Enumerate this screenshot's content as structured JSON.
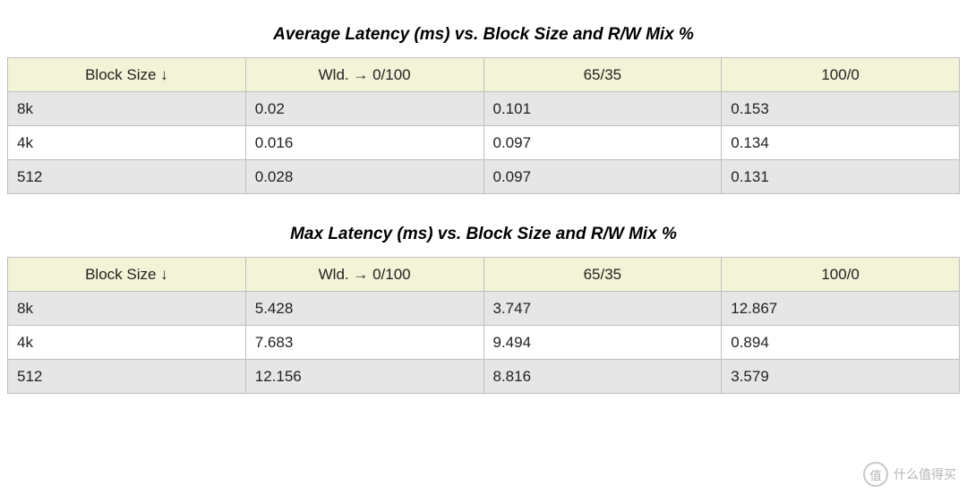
{
  "tables": [
    {
      "title": "Average Latency (ms) vs. Block Size and R/W Mix %",
      "header_bg": "#f3f3d7",
      "columns": [
        "Block Size ↓",
        "Wld. → 0/100",
        "65/35",
        "100/0"
      ],
      "rows": [
        {
          "cells": [
            "8k",
            "0.02",
            "0.101",
            "0.153"
          ],
          "bg": "#e6e6e6"
        },
        {
          "cells": [
            "4k",
            "0.016",
            "0.097",
            "0.134"
          ],
          "bg": "#ffffff"
        },
        {
          "cells": [
            "512",
            "0.028",
            "0.097",
            "0.131"
          ],
          "bg": "#e6e6e6"
        }
      ]
    },
    {
      "title": "Max Latency (ms) vs. Block Size and R/W Mix %",
      "header_bg": "#f3f3d7",
      "columns": [
        "Block Size ↓",
        "Wld. → 0/100",
        "65/35",
        "100/0"
      ],
      "rows": [
        {
          "cells": [
            "8k",
            "5.428",
            "3.747",
            "12.867"
          ],
          "bg": "#e6e6e6"
        },
        {
          "cells": [
            "4k",
            "7.683",
            "9.494",
            "0.894"
          ],
          "bg": "#ffffff"
        },
        {
          "cells": [
            "512",
            "12.156",
            "8.816",
            "3.579"
          ],
          "bg": "#e6e6e6"
        }
      ]
    }
  ],
  "watermark": {
    "badge": "值",
    "text": "什么值得买"
  },
  "style": {
    "title_fontsize": 19,
    "cell_fontsize": 17,
    "border_color": "#bfbfbf",
    "row_colors": [
      "#e6e6e6",
      "#ffffff"
    ],
    "header_bg": "#f3f3d7",
    "background": "#ffffff"
  }
}
